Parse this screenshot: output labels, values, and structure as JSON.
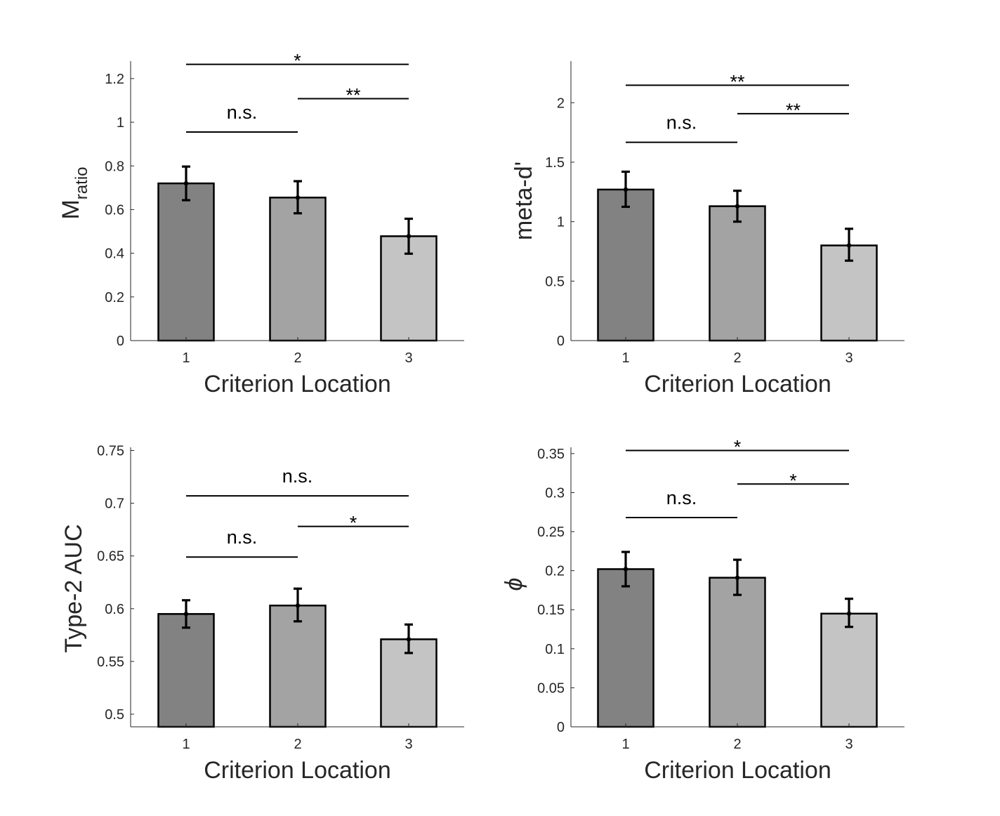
{
  "colors": {
    "bars": [
      "#828282",
      "#a3a3a3",
      "#c4c4c4"
    ],
    "axis": "#262626",
    "bar_edge": "#000000"
  },
  "chart_data": [
    {
      "type": "bar",
      "categories": [
        "1",
        "2",
        "3"
      ],
      "values": [
        0.72,
        0.655,
        0.478
      ],
      "errors": [
        [
          0.643,
          0.797
        ],
        [
          0.583,
          0.73
        ],
        [
          0.398,
          0.558
        ]
      ],
      "xlabel": "Criterion Location",
      "ylabel_main": "M",
      "ylabel_sub": "ratio",
      "ylim": [
        0,
        1.28
      ],
      "yticks": [
        0,
        0.2,
        0.4,
        0.6,
        0.8,
        1,
        1.2
      ],
      "ytick_labels": [
        "0",
        "0.2",
        "0.4",
        "0.6",
        "0.8",
        "1",
        "1.2"
      ],
      "significance": [
        {
          "from": 1,
          "to": 3,
          "y": 1.265,
          "label": "*"
        },
        {
          "from": 2,
          "to": 3,
          "y": 1.108,
          "label": "**"
        },
        {
          "from": 1,
          "to": 2,
          "y": 0.955,
          "label": "n.s."
        }
      ]
    },
    {
      "type": "bar",
      "categories": [
        "1",
        "2",
        "3"
      ],
      "values": [
        1.27,
        1.13,
        0.8
      ],
      "errors": [
        [
          1.125,
          1.42
        ],
        [
          1.0,
          1.26
        ],
        [
          0.672,
          0.94
        ]
      ],
      "xlabel": "Criterion Location",
      "ylabel_main": "meta-d'",
      "ylabel_sub": "",
      "ylim": [
        0,
        2.35
      ],
      "yticks": [
        0,
        0.5,
        1,
        1.5,
        2
      ],
      "ytick_labels": [
        "0",
        "0.5",
        "1",
        "1.5",
        "2"
      ],
      "significance": [
        {
          "from": 1,
          "to": 3,
          "y": 2.147,
          "label": "**"
        },
        {
          "from": 2,
          "to": 3,
          "y": 1.908,
          "label": "**"
        },
        {
          "from": 1,
          "to": 2,
          "y": 1.667,
          "label": "n.s."
        }
      ]
    },
    {
      "type": "bar",
      "categories": [
        "1",
        "2",
        "3"
      ],
      "values": [
        0.595,
        0.603,
        0.571
      ],
      "errors": [
        [
          0.582,
          0.608
        ],
        [
          0.588,
          0.619
        ],
        [
          0.558,
          0.585
        ]
      ],
      "xlabel": "Criterion Location",
      "ylabel_main": "Type-2 AUC",
      "ylabel_sub": "",
      "ylim": [
        0.488,
        0.753
      ],
      "yticks": [
        0.5,
        0.55,
        0.6,
        0.65,
        0.7,
        0.75
      ],
      "ytick_labels": [
        "0.5",
        "0.55",
        "0.6",
        "0.65",
        "0.7",
        "0.75"
      ],
      "significance": [
        {
          "from": 1,
          "to": 3,
          "y": 0.707,
          "label": "n.s."
        },
        {
          "from": 2,
          "to": 3,
          "y": 0.678,
          "label": "*"
        },
        {
          "from": 1,
          "to": 2,
          "y": 0.649,
          "label": "n.s."
        }
      ]
    },
    {
      "type": "bar",
      "categories": [
        "1",
        "2",
        "3"
      ],
      "values": [
        0.202,
        0.191,
        0.145
      ],
      "errors": [
        [
          0.18,
          0.224
        ],
        [
          0.169,
          0.214
        ],
        [
          0.128,
          0.164
        ]
      ],
      "xlabel": "Criterion Location",
      "ylabel_main": "ϕ",
      "ylabel_sub": "",
      "ylim": [
        0,
        0.358
      ],
      "yticks": [
        0,
        0.05,
        0.1,
        0.15,
        0.2,
        0.25,
        0.3,
        0.35
      ],
      "ytick_labels": [
        "0",
        "0.05",
        "0.1",
        "0.15",
        "0.2",
        "0.25",
        "0.3",
        "0.35"
      ],
      "significance": [
        {
          "from": 1,
          "to": 3,
          "y": 0.354,
          "label": "*"
        },
        {
          "from": 2,
          "to": 3,
          "y": 0.311,
          "label": "*"
        },
        {
          "from": 1,
          "to": 2,
          "y": 0.268,
          "label": "n.s."
        }
      ]
    }
  ]
}
